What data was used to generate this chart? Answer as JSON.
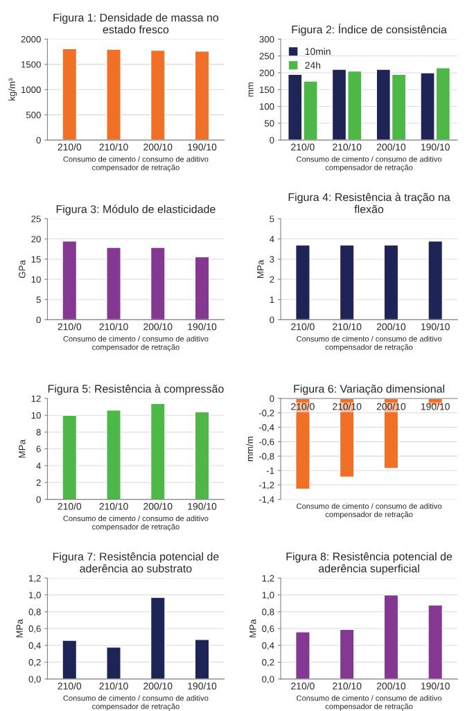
{
  "chart_data": [
    {
      "type": "bar",
      "title": "Figura 1: Densidade de massa no\nestado fresco",
      "xlabel": "Consumo de cimento / consumo de aditivo\ncompensador de retração",
      "ylabel": "kg/m³",
      "categories": [
        "210/0",
        "210/10",
        "200/10",
        "190/10"
      ],
      "values": [
        1810,
        1800,
        1780,
        1760
      ],
      "color": "#f07028",
      "ylim": [
        0,
        2000
      ],
      "yticks": [
        0,
        500,
        1000,
        1500,
        2000
      ],
      "grid": "y"
    },
    {
      "type": "bar",
      "title": "Figura 2: Índice de consistência",
      "xlabel": "Consumo de cimento / consumo de aditivo\ncompensador de retração",
      "ylabel": "mm",
      "categories": [
        "210/0",
        "210/10",
        "200/10",
        "190/10"
      ],
      "series": [
        {
          "name": "10min",
          "color": "#1f2456",
          "values": [
            195,
            210,
            210,
            200
          ]
        },
        {
          "name": "24h",
          "color": "#4db848",
          "values": [
            175,
            205,
            195,
            215
          ]
        }
      ],
      "ylim": [
        0,
        300
      ],
      "yticks": [
        0,
        50,
        100,
        150,
        200,
        250,
        300
      ],
      "grid": "y",
      "legend": "top left"
    },
    {
      "type": "bar",
      "title": "Figura 3: Módulo de elasticidade",
      "xlabel": "Consumo de cimento / consumo de aditivo\ncompensador de retração",
      "ylabel": "GPa",
      "categories": [
        "210/0",
        "210/10",
        "200/10",
        "190/10"
      ],
      "values": [
        19.5,
        17.9,
        17.9,
        15.6
      ],
      "color": "#843892",
      "ylim": [
        0,
        25
      ],
      "yticks": [
        0,
        5,
        10,
        15,
        20,
        25
      ],
      "grid": "y"
    },
    {
      "type": "bar",
      "title": "Figura 4: Resistência à tração na\nflexão",
      "xlabel": "Consumo de cimento / consumo de aditivo\ncompensador de retração",
      "ylabel": "MPa",
      "categories": [
        "210/0",
        "210/10",
        "200/10",
        "190/10"
      ],
      "values": [
        3.7,
        3.7,
        3.7,
        3.9
      ],
      "color": "#1f2456",
      "ylim": [
        0,
        5
      ],
      "yticks": [
        0,
        1,
        2,
        3,
        4,
        5
      ],
      "grid": "y"
    },
    {
      "type": "bar",
      "title": "Figura 5: Resistência à compressão",
      "xlabel": "Consumo de cimento / consumo de aditivo\ncompensador de retração",
      "ylabel": "MPa",
      "categories": [
        "210/0",
        "210/10",
        "200/10",
        "190/10"
      ],
      "values": [
        10.0,
        10.6,
        11.4,
        10.4
      ],
      "color": "#4db848",
      "ylim": [
        0,
        12
      ],
      "yticks": [
        0,
        2,
        4,
        6,
        8,
        10,
        12
      ],
      "grid": "y"
    },
    {
      "type": "bar",
      "title": "Figura 6: Variação dimensional",
      "xlabel": "Consumo de cimento / consumo de aditivo\ncompensador de retração",
      "ylabel": "mm/m",
      "categories": [
        "210/0",
        "210/10",
        "200/10",
        "190/10"
      ],
      "values": [
        -1.26,
        -1.09,
        -0.97,
        -0.1
      ],
      "color": "#f07028",
      "ylim": [
        -1.4,
        0
      ],
      "yticks": [
        {
          "value": -1.4,
          "label": "-1,4"
        },
        {
          "value": -1.2,
          "label": "-1,2"
        },
        {
          "value": -1,
          "label": "-1"
        },
        {
          "value": -0.8,
          "label": "-0,8"
        },
        {
          "value": -0.6,
          "label": "-0,6"
        },
        {
          "value": -0.4,
          "label": "-0,4"
        },
        {
          "value": -0.2,
          "label": "-0,2"
        },
        0
      ],
      "grid": "y"
    },
    {
      "type": "bar",
      "title": "Figura 7: Resistência potencial de\naderência ao substrato",
      "xlabel": "Consumo de cimento / consumo de aditivo\ncompensador de retração",
      "ylabel": "MPa",
      "categories": [
        "210/0",
        "210/10",
        "200/10",
        "190/10"
      ],
      "values": [
        0.46,
        0.38,
        0.97,
        0.47
      ],
      "color": "#1f2456",
      "ylim": [
        0,
        1.2
      ],
      "yticks": [
        {
          "value": 0,
          "label": "0,0"
        },
        {
          "value": 0.2,
          "label": "0,2"
        },
        {
          "value": 0.4,
          "label": "0,4"
        },
        {
          "value": 0.6,
          "label": "0,6"
        },
        {
          "value": 0.8,
          "label": "0,8"
        },
        {
          "value": 1.0,
          "label": "1,0"
        },
        {
          "value": 1.2,
          "label": "1,2"
        }
      ],
      "grid": "y"
    },
    {
      "type": "bar",
      "title": "Figura 8: Resistência potencial de\naderência superficial",
      "xlabel": "Consumo de cimento / consumo de aditivo\ncompensador de retração",
      "ylabel": "MPa",
      "categories": [
        "210/0",
        "210/10",
        "200/10",
        "190/10"
      ],
      "values": [
        0.56,
        0.59,
        1.0,
        0.88
      ],
      "color": "#843892",
      "ylim": [
        0,
        1.2
      ],
      "yticks": [
        {
          "value": 0,
          "label": "0,0"
        },
        {
          "value": 0.2,
          "label": "0,2"
        },
        {
          "value": 0.4,
          "label": "0,4"
        },
        {
          "value": 0.6,
          "label": "0,6"
        },
        {
          "value": 0.8,
          "label": "0,8"
        },
        {
          "value": 1.0,
          "label": "1,0"
        },
        {
          "value": 1.2,
          "label": "1,2"
        }
      ],
      "grid": "y"
    }
  ]
}
